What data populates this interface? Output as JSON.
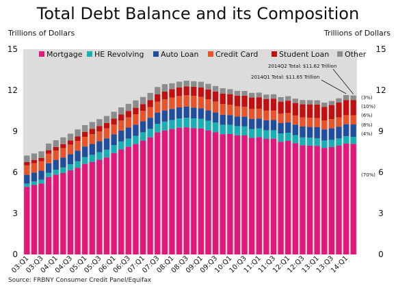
{
  "title": "Total Debt Balance and its Composition",
  "left_axis_unit": "Trillions of Dollars",
  "right_axis_unit": "Trillions of Dollars",
  "source": "Source: FRBNY Consumer Credit Panel/Equifax",
  "annotations": [
    {
      "text": "2014Q2 Total: $11.62 Trillion"
    },
    {
      "text": "2014Q1 Total: $11.65 Trillion"
    }
  ],
  "shares": [
    {
      "text": "(3%)",
      "series": "Other"
    },
    {
      "text": "(10%)",
      "series": "Student Loan"
    },
    {
      "text": "(6%)",
      "series": "Credit Card"
    },
    {
      "text": "(8%)",
      "series": "Auto Loan"
    },
    {
      "text": "(4%)",
      "series": "HE Revolving"
    },
    {
      "text": "(70%)",
      "series": "Mortgage"
    }
  ],
  "colors": {
    "Mortgage": "#e0187a",
    "HE Revolving": "#17b0b4",
    "Auto Loan": "#1f4e9c",
    "Credit Card": "#e8542a",
    "Student Loan": "#c01010",
    "Other": "#8c8c8c",
    "plot_bg": "#dcdcdc"
  },
  "chart_data": {
    "type": "bar",
    "stacked": true,
    "title": "Total Debt Balance and its Composition",
    "ylabel": "Trillions of Dollars",
    "ylim": [
      0,
      15
    ],
    "yticks": [
      0,
      3,
      6,
      9,
      12,
      15
    ],
    "grid": false,
    "legend": "top",
    "x_tick_labels": [
      "03:Q1",
      "03:Q3",
      "04:Q1",
      "04:Q3",
      "05:Q1",
      "05:Q3",
      "06:Q1",
      "06:Q3",
      "07:Q1",
      "07:Q3",
      "08:Q1",
      "08:Q3",
      "09:Q1",
      "09:Q3",
      "10:Q1",
      "10:Q3",
      "11:Q1",
      "11:Q3",
      "12:Q1",
      "12:Q3",
      "13:Q1",
      "13:Q3",
      "14:Q1"
    ],
    "categories": [
      "03:Q1",
      "03:Q2",
      "03:Q3",
      "03:Q4",
      "04:Q1",
      "04:Q2",
      "04:Q3",
      "04:Q4",
      "05:Q1",
      "05:Q2",
      "05:Q3",
      "05:Q4",
      "06:Q1",
      "06:Q2",
      "06:Q3",
      "06:Q4",
      "07:Q1",
      "07:Q2",
      "07:Q3",
      "07:Q4",
      "08:Q1",
      "08:Q2",
      "08:Q3",
      "08:Q4",
      "09:Q1",
      "09:Q2",
      "09:Q3",
      "09:Q4",
      "10:Q1",
      "10:Q2",
      "10:Q3",
      "10:Q4",
      "11:Q1",
      "11:Q2",
      "11:Q3",
      "11:Q4",
      "12:Q1",
      "12:Q2",
      "12:Q3",
      "12:Q4",
      "13:Q1",
      "13:Q2",
      "13:Q3",
      "13:Q4",
      "14:Q1",
      "14:Q2"
    ],
    "series": [
      {
        "name": "Mortgage",
        "values": [
          4.94,
          5.08,
          5.18,
          5.65,
          5.84,
          5.95,
          6.16,
          6.34,
          6.62,
          6.75,
          6.92,
          7.09,
          7.41,
          7.67,
          7.87,
          8.07,
          8.32,
          8.56,
          8.92,
          9.06,
          9.17,
          9.26,
          9.29,
          9.24,
          9.21,
          9.07,
          8.94,
          8.79,
          8.8,
          8.71,
          8.7,
          8.52,
          8.57,
          8.45,
          8.46,
          8.23,
          8.3,
          8.13,
          7.98,
          7.96,
          7.94,
          7.79,
          7.85,
          7.95,
          8.11,
          8.08
        ]
      },
      {
        "name": "HE Revolving",
        "values": [
          0.24,
          0.26,
          0.29,
          0.32,
          0.36,
          0.41,
          0.44,
          0.47,
          0.5,
          0.53,
          0.55,
          0.57,
          0.58,
          0.59,
          0.6,
          0.6,
          0.61,
          0.62,
          0.63,
          0.65,
          0.66,
          0.68,
          0.7,
          0.71,
          0.71,
          0.71,
          0.7,
          0.69,
          0.68,
          0.67,
          0.66,
          0.65,
          0.64,
          0.63,
          0.62,
          0.61,
          0.6,
          0.59,
          0.58,
          0.58,
          0.55,
          0.54,
          0.53,
          0.53,
          0.53,
          0.52
        ]
      },
      {
        "name": "Auto Loan",
        "values": [
          0.64,
          0.64,
          0.65,
          0.69,
          0.7,
          0.72,
          0.73,
          0.77,
          0.77,
          0.8,
          0.81,
          0.82,
          0.79,
          0.8,
          0.81,
          0.81,
          0.8,
          0.81,
          0.82,
          0.81,
          0.81,
          0.81,
          0.81,
          0.79,
          0.76,
          0.75,
          0.74,
          0.73,
          0.71,
          0.71,
          0.71,
          0.73,
          0.73,
          0.73,
          0.75,
          0.76,
          0.76,
          0.77,
          0.79,
          0.78,
          0.81,
          0.81,
          0.84,
          0.86,
          0.88,
          0.9
        ]
      },
      {
        "name": "Credit Card",
        "values": [
          0.69,
          0.69,
          0.69,
          0.71,
          0.7,
          0.7,
          0.7,
          0.72,
          0.71,
          0.72,
          0.72,
          0.74,
          0.72,
          0.73,
          0.74,
          0.76,
          0.76,
          0.78,
          0.8,
          0.83,
          0.83,
          0.83,
          0.84,
          0.85,
          0.84,
          0.82,
          0.8,
          0.79,
          0.76,
          0.74,
          0.73,
          0.73,
          0.71,
          0.7,
          0.69,
          0.7,
          0.68,
          0.67,
          0.67,
          0.68,
          0.67,
          0.66,
          0.67,
          0.68,
          0.66,
          0.67
        ]
      },
      {
        "name": "Student Loan",
        "values": [
          0.24,
          0.24,
          0.25,
          0.25,
          0.26,
          0.28,
          0.3,
          0.33,
          0.36,
          0.38,
          0.39,
          0.39,
          0.43,
          0.45,
          0.47,
          0.48,
          0.5,
          0.51,
          0.53,
          0.55,
          0.61,
          0.63,
          0.64,
          0.66,
          0.69,
          0.71,
          0.73,
          0.76,
          0.77,
          0.78,
          0.81,
          0.84,
          0.84,
          0.85,
          0.87,
          0.87,
          0.9,
          0.91,
          0.96,
          0.97,
          0.99,
          0.99,
          1.03,
          1.08,
          1.11,
          1.12
        ]
      },
      {
        "name": "Other",
        "values": [
          0.48,
          0.47,
          0.48,
          0.49,
          0.49,
          0.5,
          0.5,
          0.51,
          0.49,
          0.5,
          0.5,
          0.51,
          0.5,
          0.51,
          0.52,
          0.54,
          0.52,
          0.53,
          0.54,
          0.55,
          0.43,
          0.42,
          0.42,
          0.41,
          0.41,
          0.41,
          0.4,
          0.39,
          0.36,
          0.35,
          0.34,
          0.34,
          0.34,
          0.33,
          0.32,
          0.33,
          0.33,
          0.32,
          0.31,
          0.31,
          0.31,
          0.31,
          0.3,
          0.31,
          0.36,
          0.33
        ]
      }
    ]
  }
}
